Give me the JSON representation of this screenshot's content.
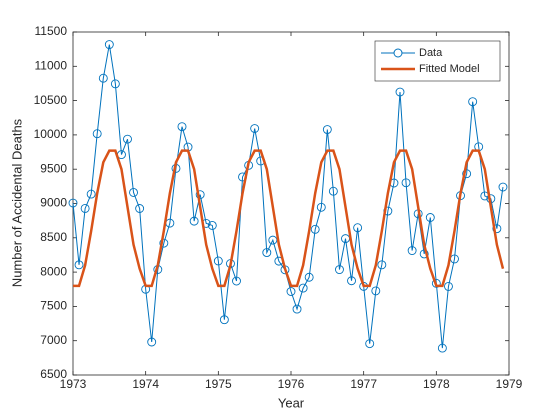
{
  "chart_data": {
    "type": "line",
    "xlabel": "Year",
    "ylabel": "Number of Accidental Deaths",
    "xlim": [
      1973,
      1979
    ],
    "xticks": [
      1973,
      1974,
      1975,
      1976,
      1977,
      1978,
      1979
    ],
    "ylim": [
      6500,
      11500
    ],
    "yticks": [
      6500,
      7000,
      7500,
      8000,
      8500,
      9000,
      9500,
      10000,
      10500,
      11000,
      11500
    ],
    "legend": "upper right",
    "x": [
      1973,
      1973.083,
      1973.167,
      1973.25,
      1973.333,
      1973.417,
      1973.5,
      1973.583,
      1973.667,
      1973.75,
      1973.833,
      1973.917,
      1974,
      1974.083,
      1974.167,
      1974.25,
      1974.333,
      1974.417,
      1974.5,
      1974.583,
      1974.667,
      1974.75,
      1974.833,
      1974.917,
      1975,
      1975.083,
      1975.167,
      1975.25,
      1975.333,
      1975.417,
      1975.5,
      1975.583,
      1975.667,
      1975.75,
      1975.833,
      1975.917,
      1976,
      1976.083,
      1976.167,
      1976.25,
      1976.333,
      1976.417,
      1976.5,
      1976.583,
      1976.667,
      1976.75,
      1976.833,
      1976.917,
      1977,
      1977.083,
      1977.167,
      1977.25,
      1977.333,
      1977.417,
      1977.5,
      1977.583,
      1977.667,
      1977.75,
      1977.833,
      1977.917,
      1978,
      1978.083,
      1978.167,
      1978.25,
      1978.333,
      1978.417,
      1978.5,
      1978.583,
      1978.667,
      1978.75,
      1978.833,
      1978.917
    ],
    "series": [
      {
        "name": "Data",
        "color": "#0072BD",
        "marker": "o",
        "values": [
          9007,
          8106,
          8928,
          9137,
          10017,
          10826,
          11317,
          10744,
          9713,
          9938,
          9161,
          8927,
          7750,
          6981,
          8038,
          8422,
          8714,
          9512,
          10120,
          9823,
          8743,
          9129,
          8710,
          8680,
          8162,
          7306,
          8124,
          7870,
          9387,
          9556,
          10093,
          9620,
          8285,
          8466,
          8160,
          8034,
          7717,
          7461,
          7767,
          7925,
          8623,
          8945,
          10078,
          9179,
          8037,
          8488,
          7874,
          8647,
          7792,
          6957,
          7726,
          8106,
          8890,
          9299,
          10625,
          9302,
          8314,
          8850,
          8265,
          8796,
          7836,
          6892,
          7791,
          8192,
          9115,
          9434,
          10484,
          9827,
          9110,
          9070,
          8633,
          9240
        ]
      },
      {
        "name": "Fitted Model",
        "color": "#D95319",
        "values": [
          7800,
          7800,
          8100,
          8600,
          9150,
          9600,
          9770,
          9770,
          9500,
          8950,
          8400,
          8050,
          7800,
          7800,
          8100,
          8600,
          9150,
          9600,
          9770,
          9770,
          9500,
          8950,
          8400,
          8050,
          7800,
          7800,
          8100,
          8600,
          9150,
          9600,
          9770,
          9770,
          9500,
          8950,
          8400,
          8050,
          7800,
          7800,
          8100,
          8600,
          9150,
          9600,
          9770,
          9770,
          9500,
          8950,
          8400,
          8050,
          7800,
          7800,
          8100,
          8600,
          9150,
          9600,
          9770,
          9770,
          9500,
          8950,
          8400,
          8050,
          7800,
          7800,
          8100,
          8600,
          9150,
          9600,
          9770,
          9770,
          9500,
          8950,
          8400,
          8050
        ]
      }
    ]
  }
}
